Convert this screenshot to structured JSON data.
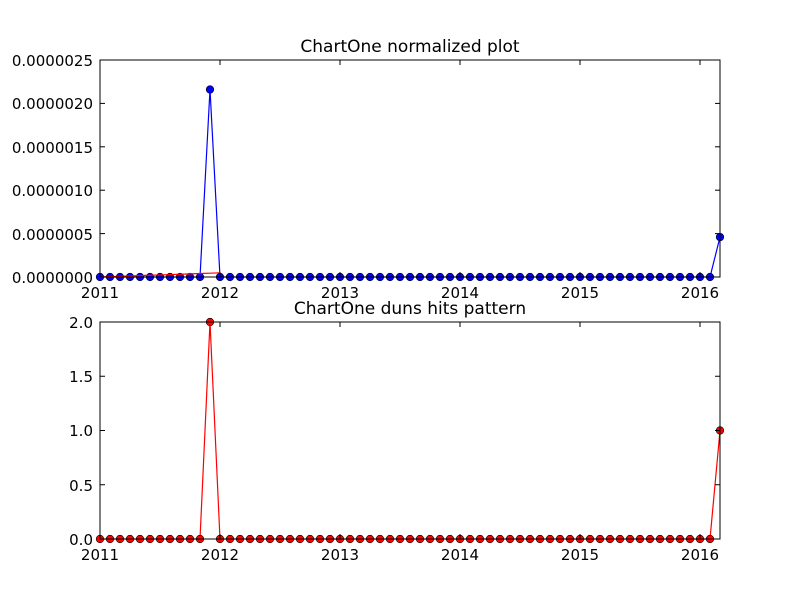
{
  "charts": [
    {
      "title": "ChartOne normalized plot",
      "x_ticks": [
        "2011",
        "2012",
        "2013",
        "2014",
        "2015",
        "2016"
      ],
      "y_ticks": [
        "0.0000000",
        "0.0000005",
        "0.0000010",
        "0.0000015",
        "0.0000020",
        "0.0000025"
      ]
    },
    {
      "title": "ChartOne duns hits pattern",
      "x_ticks": [
        "2011",
        "2012",
        "2013",
        "2014",
        "2015",
        "2016"
      ],
      "y_ticks": [
        "0.0",
        "0.5",
        "1.0",
        "1.5",
        "2.0"
      ]
    }
  ],
  "chart_data": [
    {
      "type": "line",
      "title": "ChartOne normalized plot",
      "xlabel": "",
      "ylabel": "",
      "x_domain": [
        "2011-01",
        "2016-03"
      ],
      "ylim": [
        0,
        2.5e-06
      ],
      "x_ticks": [
        "2011",
        "2012",
        "2013",
        "2014",
        "2015",
        "2016"
      ],
      "y_ticks": [
        0,
        5e-07,
        1e-06,
        1.5e-06,
        2e-06,
        2.5e-06
      ],
      "series": [
        {
          "color": "#0000ff",
          "marker": "circle",
          "start": "2011-01",
          "values": [
            0,
            0,
            0,
            0,
            0,
            0,
            0,
            0,
            0,
            0,
            0,
            2.16e-06,
            0,
            0,
            0,
            0,
            0,
            0,
            0,
            0,
            0,
            0,
            0,
            0,
            0,
            0,
            0,
            0,
            0,
            0,
            0,
            0,
            0,
            0,
            0,
            0,
            0,
            0,
            0,
            0,
            0,
            0,
            0,
            0,
            0,
            0,
            0,
            0,
            0,
            0,
            0,
            0,
            0,
            0,
            0,
            0,
            0,
            0,
            0,
            0,
            0,
            0,
            4.6e-07
          ]
        },
        {
          "color": "#ff0000",
          "marker": "none",
          "start": "2011-01",
          "values": [
            0,
            4e-09,
            8e-09,
            1.2e-08,
            1.6e-08,
            2e-08,
            2.4e-08,
            2.8e-08,
            3.2e-08,
            3.6e-08,
            4e-08,
            4.4e-08,
            4.8e-08
          ]
        }
      ],
      "grid": false,
      "legend": "none"
    },
    {
      "type": "line",
      "title": "ChartOne duns hits pattern",
      "xlabel": "",
      "ylabel": "",
      "x_domain": [
        "2011-01",
        "2016-03"
      ],
      "ylim": [
        0,
        2.0
      ],
      "x_ticks": [
        "2011",
        "2012",
        "2013",
        "2014",
        "2015",
        "2016"
      ],
      "y_ticks": [
        0,
        0.5,
        1.0,
        1.5,
        2.0
      ],
      "series": [
        {
          "color": "#ff0000",
          "marker": "circle",
          "start": "2011-01",
          "values": [
            0,
            0,
            0,
            0,
            0,
            0,
            0,
            0,
            0,
            0,
            0,
            2,
            0,
            0,
            0,
            0,
            0,
            0,
            0,
            0,
            0,
            0,
            0,
            0,
            0,
            0,
            0,
            0,
            0,
            0,
            0,
            0,
            0,
            0,
            0,
            0,
            0,
            0,
            0,
            0,
            0,
            0,
            0,
            0,
            0,
            0,
            0,
            0,
            0,
            0,
            0,
            0,
            0,
            0,
            0,
            0,
            0,
            0,
            0,
            0,
            0,
            0,
            1
          ]
        }
      ],
      "grid": false,
      "legend": "none"
    }
  ]
}
